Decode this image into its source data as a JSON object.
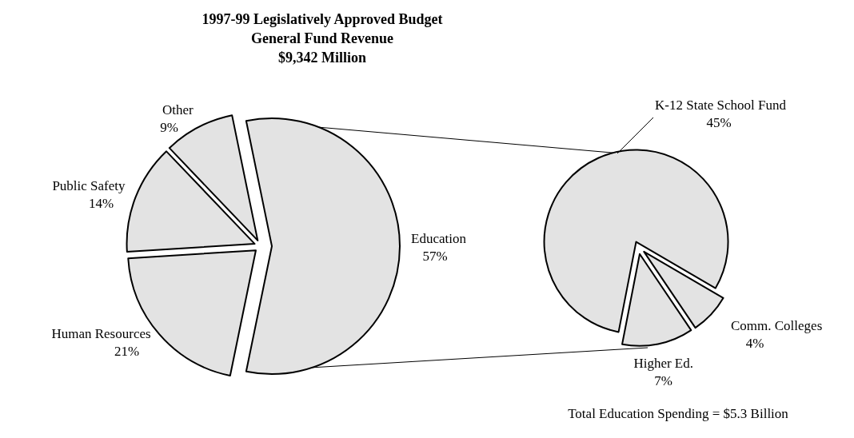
{
  "chart_data": [
    {
      "type": "pie",
      "title": "1997-99 Legislatively Approved Budget",
      "subtitle": "General Fund Revenue\n$9,342 Million",
      "categories": [
        "Education",
        "Human Resources",
        "Public Safety",
        "Other"
      ],
      "values": [
        57,
        21,
        14,
        9
      ],
      "value_labels": [
        "57%",
        "21%",
        "14%",
        "9%"
      ],
      "colors": [
        "#e3e3e3",
        "#e3e3e3",
        "#e3e3e3",
        "#e3e3e3"
      ]
    },
    {
      "type": "pie",
      "categories": [
        "K-12 State School Fund",
        "Comm. Colleges",
        "Higher Ed."
      ],
      "values": [
        45,
        4,
        7
      ],
      "value_labels": [
        "45%",
        "4%",
        "7%"
      ],
      "colors": [
        "#e3e3e3",
        "#e3e3e3",
        "#e3e3e3"
      ],
      "annotations": [
        "Total Education Spending = $5.3 Billion"
      ]
    }
  ]
}
